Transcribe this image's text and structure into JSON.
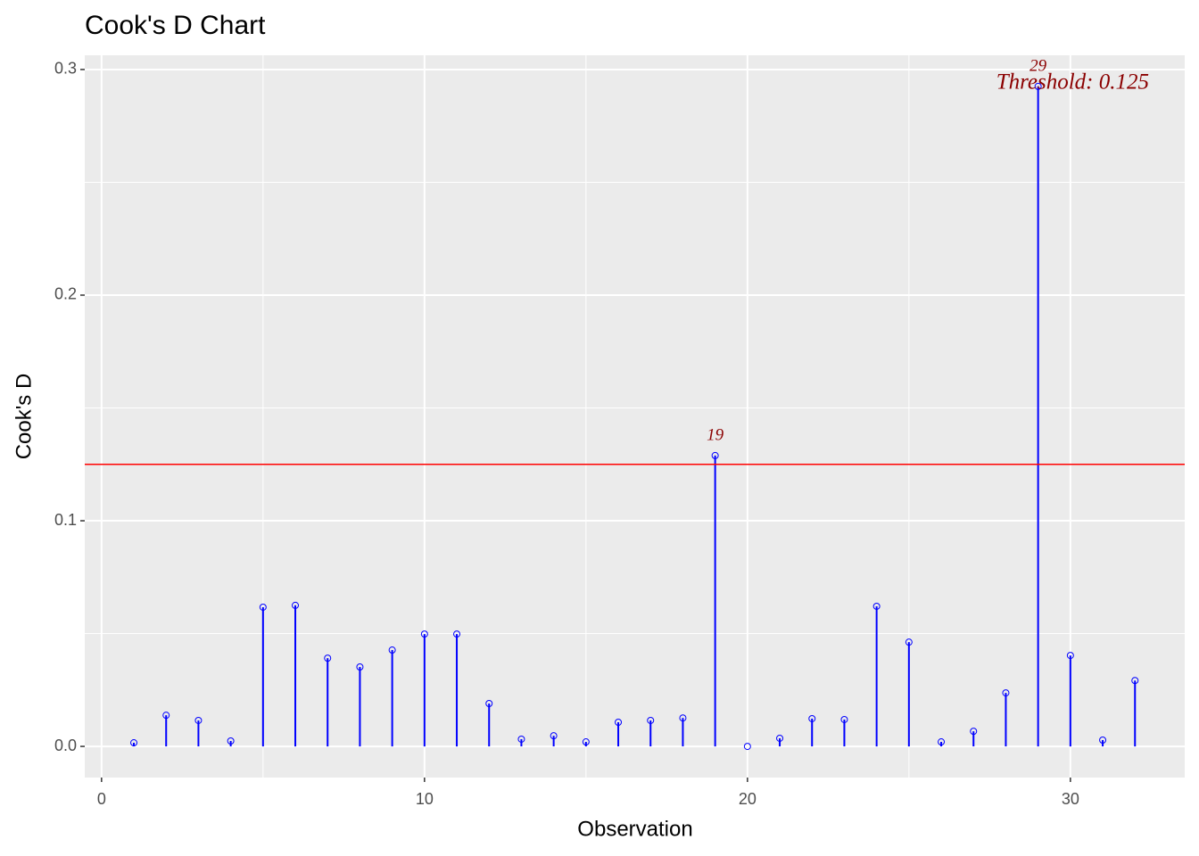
{
  "chart_data": {
    "type": "lollipop",
    "title": "Cook's D Chart",
    "x_label": "Observation",
    "y_label": "Cook's D",
    "x": [
      1,
      2,
      3,
      4,
      5,
      6,
      7,
      8,
      9,
      10,
      11,
      12,
      13,
      14,
      15,
      16,
      17,
      18,
      19,
      20,
      21,
      22,
      23,
      24,
      25,
      26,
      27,
      28,
      29,
      30,
      31,
      32
    ],
    "values": [
      0.0016,
      0.0138,
      0.0115,
      0.0024,
      0.0617,
      0.0625,
      0.0391,
      0.0352,
      0.0427,
      0.0498,
      0.0498,
      0.019,
      0.0032,
      0.0047,
      0.002,
      0.0107,
      0.0115,
      0.0126,
      0.1289,
      0.0,
      0.0036,
      0.0123,
      0.0119,
      0.0621,
      0.0462,
      0.002,
      0.0067,
      0.0237,
      0.2925,
      0.0403,
      0.0028,
      0.0292
    ],
    "point_labels": [
      null,
      null,
      null,
      null,
      null,
      null,
      null,
      null,
      null,
      null,
      null,
      null,
      null,
      null,
      null,
      null,
      null,
      null,
      "19",
      null,
      null,
      null,
      null,
      null,
      null,
      null,
      null,
      null,
      "29",
      null,
      null,
      null
    ],
    "color": "#0000ff",
    "threshold": 0.125,
    "threshold_color": "#ff0000",
    "threshold_label": "Threshold: 0.125",
    "label_color": "#8b0000",
    "xlim": [
      -0.52,
      33.54
    ],
    "xticks": [
      0,
      10,
      20,
      30
    ],
    "ylim": [
      -0.0138,
      0.3063
    ],
    "yticks": [
      {
        "value": 0,
        "label": "0.0"
      },
      {
        "value": 0.1,
        "label": "0.1"
      },
      {
        "value": 0.2,
        "label": "0.2"
      },
      {
        "value": 0.3,
        "label": "0.3"
      }
    ],
    "grid": true
  }
}
